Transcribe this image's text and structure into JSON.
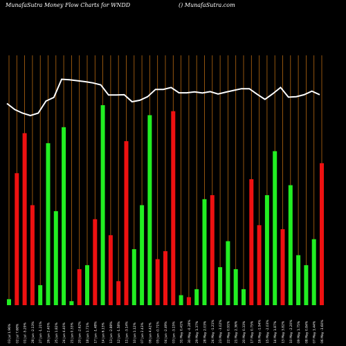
{
  "header": {
    "left": "MunafaSutra  Money Flow  Charts for WNDD",
    "right": "() MunafaSutra.com"
  },
  "colors": {
    "background": "#000000",
    "gridline": "#b86a12",
    "bar_up": "#22ee22",
    "bar_down": "#ee1111",
    "line": "#ffffff",
    "text": "#ffffff"
  },
  "chart_data": {
    "type": "bar",
    "title": "",
    "grid": true,
    "categories": [
      "03 Jul 1.96%",
      "02 Jul 7.68%",
      "01 Jul -5.29%",
      "28 Jun -2.13%",
      "27 Jun -1.21%",
      "26 Jun 2.40%",
      "25 Jun 1.82%",
      "24 Jun 4.40%",
      "21 Jun 0.33%",
      "20 Jun -2.62%",
      "18 Jun 1.71%",
      "17 Jun -1.48%",
      "14 Jun 6.13%",
      "13 Jun -2.88%",
      "12 Jun -1.58%",
      "11 Jun -3.14%",
      "10 Jun 1.12%",
      "07 Jun 2.43%",
      "06 Jun 4.42%",
      "05 Jun -0.71%",
      "04 Jun -2.49%",
      "03 Jun -3.15%",
      "31 May 0.41%",
      "30 May -0.28%",
      "29 May 1.37%",
      "28 May 2.03%",
      "24 May -1.21%",
      "23 May -3.02%",
      "22 May 0.91%",
      "21 May 2.36%",
      "20 May 0.33%",
      "17 May 0.75%",
      "16 May -1.94%",
      "15 May -2.03%",
      "14 May 1.87%",
      "13 May 3.82%",
      "10 May -2.20%",
      "09 May 1.75%",
      "08 May 0.84%",
      "07 May 1.44%",
      "06 May -3.60%"
    ],
    "values": [
      3,
      66,
      86,
      50,
      10,
      81,
      47,
      89,
      2,
      18,
      20,
      43,
      100,
      35,
      12,
      82,
      28,
      50,
      95,
      23,
      27,
      97,
      5,
      4,
      8,
      53,
      55,
      19,
      32,
      18,
      8,
      63,
      40,
      55,
      77,
      38,
      60,
      25,
      20,
      33,
      71
    ],
    "direction": [
      "up",
      "down",
      "down",
      "down",
      "up",
      "up",
      "up",
      "up",
      "up",
      "down",
      "up",
      "down",
      "up",
      "down",
      "down",
      "down",
      "up",
      "up",
      "up",
      "down",
      "down",
      "down",
      "up",
      "down",
      "up",
      "up",
      "down",
      "up",
      "up",
      "up",
      "up",
      "down",
      "down",
      "up",
      "up",
      "down",
      "up",
      "up",
      "up",
      "up",
      "down"
    ],
    "line": [
      83,
      80.5,
      79,
      78,
      79,
      84,
      85.5,
      93,
      92.8,
      92.4,
      92,
      91.5,
      90.7,
      86.5,
      86.5,
      86.6,
      83.7,
      84.3,
      85.8,
      88.8,
      88.8,
      89.6,
      87.4,
      87.4,
      87.8,
      87.3,
      87.9,
      86.9,
      87.7,
      88.4,
      89.1,
      89.1,
      86.8,
      84.7,
      87,
      89.6,
      85.6,
      85.8,
      86.6,
      88.1,
      86.6
    ],
    "ylim": [
      0,
      100
    ]
  }
}
